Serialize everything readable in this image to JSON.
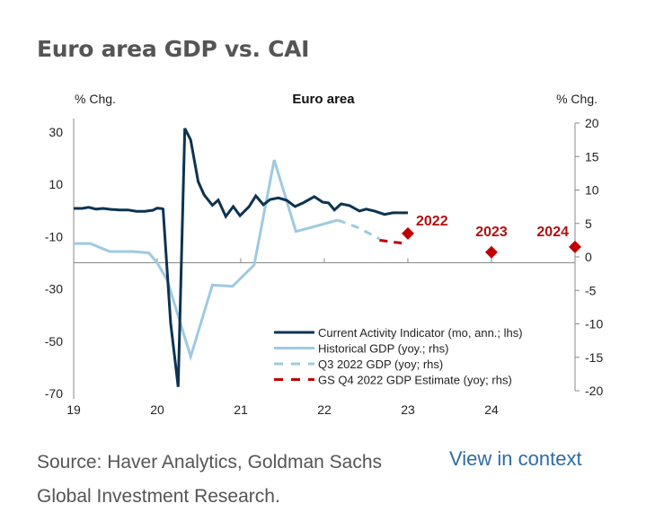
{
  "page": {
    "title": "Euro area GDP vs. CAI",
    "source_line1": "Source: Haver Analytics, Goldman Sachs",
    "source_line2": "Global Investment Research.",
    "view_link": "View in context"
  },
  "chart_data": {
    "type": "line",
    "title": "Euro area",
    "ylabel_left": "% Chg.",
    "ylabel_right": "% Chg.",
    "xlim": [
      19,
      25
    ],
    "ylim_left": [
      -70,
      30
    ],
    "ylim_right": [
      -20,
      20
    ],
    "x_ticks": [
      19,
      20,
      21,
      22,
      23,
      24
    ],
    "x_tick_labels": [
      "19",
      "20",
      "21",
      "22",
      "23",
      "24"
    ],
    "y_left_ticks": [
      30,
      10,
      -10,
      -30,
      -50,
      -70
    ],
    "y_left_tick_labels": [
      "30",
      "10",
      "-10",
      "-30",
      "-50",
      "-70"
    ],
    "y_right_ticks": [
      20,
      15,
      10,
      5,
      0,
      -5,
      -10,
      -15,
      -20
    ],
    "y_right_tick_labels": [
      "20",
      "15",
      "10",
      "5",
      "0",
      "-5",
      "-10",
      "-15",
      "-20"
    ],
    "baseline_left_value": -20,
    "grid": false,
    "legend_position": "bottom-right",
    "colors": {
      "cai": "#0d3352",
      "gdp": "#9ecae1",
      "estimate": "#c00000",
      "axis": "#888888",
      "text": "#222222",
      "annotation": "#b01010"
    },
    "series": [
      {
        "name": "Current Activity Indicator (mo, ann.; lhs)",
        "axis": "left",
        "style": "solid",
        "color": "#0d3352",
        "points": [
          [
            19.0,
            0.8
          ],
          [
            19.1,
            0.8
          ],
          [
            19.18,
            1.2
          ],
          [
            19.27,
            0.5
          ],
          [
            19.35,
            0.8
          ],
          [
            19.45,
            0.4
          ],
          [
            19.55,
            0.2
          ],
          [
            19.65,
            0.2
          ],
          [
            19.75,
            -0.3
          ],
          [
            19.85,
            -0.3
          ],
          [
            19.95,
            0.1
          ],
          [
            20.0,
            0.9
          ],
          [
            20.06,
            0.7
          ],
          [
            20.07,
            0.5
          ],
          [
            20.16,
            -43
          ],
          [
            20.25,
            -67.5
          ],
          [
            20.33,
            31.4
          ],
          [
            20.4,
            27
          ],
          [
            20.49,
            11
          ],
          [
            20.56,
            6
          ],
          [
            20.66,
            2
          ],
          [
            20.73,
            4
          ],
          [
            20.82,
            -2.3
          ],
          [
            20.91,
            1.5
          ],
          [
            20.99,
            -2
          ],
          [
            21.1,
            1.5
          ],
          [
            21.18,
            5.6
          ],
          [
            21.27,
            2.2
          ],
          [
            21.35,
            4.2
          ],
          [
            21.45,
            4.8
          ],
          [
            21.55,
            3.9
          ],
          [
            21.65,
            1.5
          ],
          [
            21.75,
            3
          ],
          [
            21.88,
            5.3
          ],
          [
            21.98,
            3.2
          ],
          [
            22.05,
            2.9
          ],
          [
            22.12,
            0.2
          ],
          [
            22.2,
            2.5
          ],
          [
            22.3,
            1.9
          ],
          [
            22.42,
            -0.2
          ],
          [
            22.5,
            0.5
          ],
          [
            22.6,
            -0.2
          ],
          [
            22.72,
            -1.5
          ],
          [
            22.82,
            -0.9
          ],
          [
            23.0,
            -0.9
          ]
        ]
      },
      {
        "name": "Historical GDP (yoy.; rhs)",
        "axis": "right",
        "style": "solid",
        "color": "#9ecae1",
        "points": [
          [
            19.0,
            2.0
          ],
          [
            19.2,
            2.0
          ],
          [
            19.43,
            0.8
          ],
          [
            19.7,
            0.8
          ],
          [
            19.9,
            0.6
          ],
          [
            20.0,
            -0.9
          ],
          [
            20.12,
            -3.5
          ],
          [
            20.4,
            -14.9
          ],
          [
            20.66,
            -4.2
          ],
          [
            20.9,
            -4.4
          ],
          [
            21.16,
            -1.2
          ],
          [
            21.4,
            14.5
          ],
          [
            21.66,
            3.8
          ],
          [
            21.9,
            4.6
          ],
          [
            22.16,
            5.5
          ]
        ]
      },
      {
        "name": "Q3 2022 GDP (yoy; rhs)",
        "axis": "right",
        "style": "dashed",
        "color": "#9ecae1",
        "points": [
          [
            22.16,
            5.5
          ],
          [
            22.4,
            4.4
          ],
          [
            22.66,
            2.7
          ]
        ]
      },
      {
        "name": "GS Q4 2022 GDP Estimate (yoy; rhs)",
        "axis": "right",
        "style": "dashed",
        "color": "#c00000",
        "points": [
          [
            22.66,
            2.5
          ],
          [
            22.83,
            2.2
          ],
          [
            23.0,
            2.0
          ]
        ]
      }
    ],
    "annual_forecasts": {
      "axis": "right",
      "marker": "diamond",
      "color": "#c00000",
      "points": [
        {
          "label": "2022",
          "x": 23.0,
          "y": 3.5
        },
        {
          "label": "2023",
          "x": 24.0,
          "y": 0.7
        },
        {
          "label": "2024",
          "x": 25.0,
          "y": 1.5
        }
      ]
    },
    "legend": [
      {
        "label": "Current Activity Indicator (mo, ann.; lhs)",
        "color": "#0d3352",
        "style": "solid"
      },
      {
        "label": "Historical GDP (yoy.; rhs)",
        "color": "#9ecae1",
        "style": "solid"
      },
      {
        "label": "Q3 2022 GDP (yoy; rhs)",
        "color": "#9ecae1",
        "style": "dashed"
      },
      {
        "label": "GS Q4 2022 GDP Estimate (yoy; rhs)",
        "color": "#c00000",
        "style": "dashed"
      }
    ]
  }
}
